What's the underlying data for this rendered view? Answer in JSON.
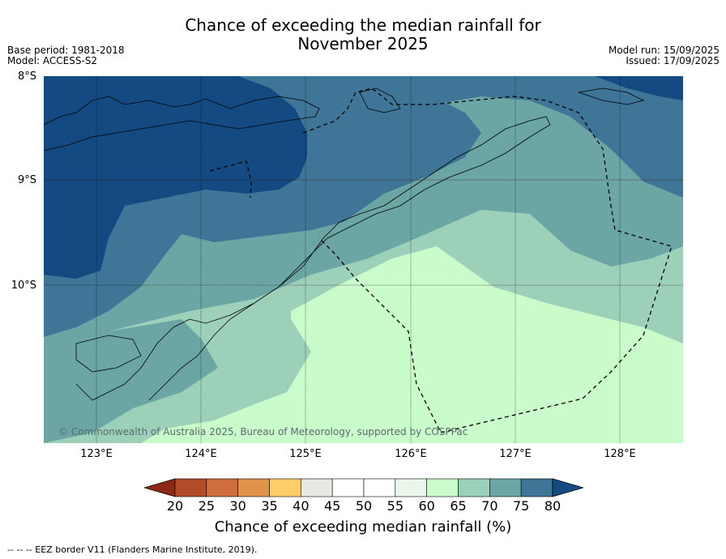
{
  "title_line1": "Chance of exceeding the median rainfall for",
  "title_line2": "November 2025",
  "meta_left": [
    "Base period: 1981-2018",
    "Model: ACCESS-S2"
  ],
  "meta_right": [
    "Model run: 15/09/2025",
    "Issued: 17/09/2025"
  ],
  "lat_labels": [
    "8°S",
    "9°S",
    "10°S"
  ],
  "lon_labels": [
    "123°E",
    "124°E",
    "125°E",
    "126°E",
    "127°E",
    "128°E"
  ],
  "copyright": "© Commonwealth of Australia 2025, Bureau of Meteorology, supported by COSPPac",
  "colorbar": {
    "label": "Chance of exceeding median rainfall (%)",
    "ticks": [
      "20",
      "25",
      "30",
      "35",
      "40",
      "45",
      "50",
      "55",
      "60",
      "65",
      "70",
      "75",
      "80"
    ],
    "colors": [
      "#8b2a12",
      "#b24b28",
      "#cd6e3c",
      "#e0924a",
      "#fdcd6a",
      "#e8e8e3",
      "#ffffff",
      "#ffffff",
      "#eaf6e9",
      "#c9fcca",
      "#9dd0b8",
      "#6ba6a5",
      "#3f7596",
      "#134a82"
    ]
  },
  "footer": "--  --  -- EEZ border V11 (Flanders Marine Institute, 2019).",
  "map_colors": {
    "c80": "#134a82",
    "c75": "#3f7596",
    "c70": "#6ba6a5",
    "c65": "#9dd0b8",
    "c60": "#c9fcca"
  }
}
